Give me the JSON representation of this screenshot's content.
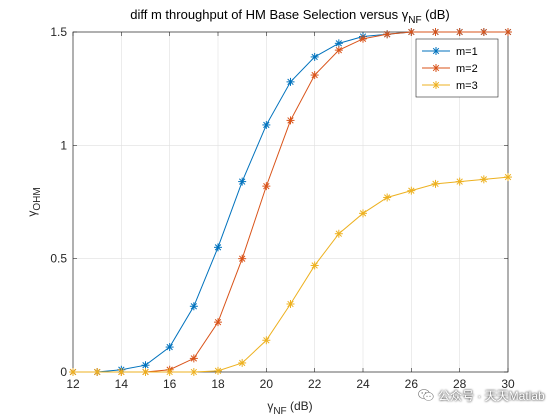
{
  "chart_data": {
    "type": "line",
    "title_prefix": "diff m throughput of HM Base Selection versus ",
    "title_symbol": "γ",
    "title_sub": "NF",
    "title_suffix": " (dB)",
    "xlabel_symbol": "γ",
    "xlabel_sub": "NF",
    "xlabel_suffix": " (dB)",
    "ylabel_symbol": "γ",
    "ylabel_sub": "OHM",
    "xlim": [
      12,
      30
    ],
    "ylim": [
      0,
      1.5
    ],
    "xticks": [
      "12",
      "14",
      "16",
      "18",
      "20",
      "22",
      "24",
      "26",
      "28",
      "30"
    ],
    "yticks": [
      "0",
      "0.5",
      "1",
      "1.5"
    ],
    "grid": true,
    "legend_position": "top-right",
    "x": [
      12,
      13,
      14,
      15,
      16,
      17,
      18,
      19,
      20,
      21,
      22,
      23,
      24,
      25,
      26,
      27,
      28,
      29,
      30
    ],
    "series": [
      {
        "name": "m=1",
        "color": "#0072BD",
        "marker": "asterisk",
        "values": [
          0,
          0,
          0.01,
          0.03,
          0.11,
          0.29,
          0.55,
          0.84,
          1.09,
          1.28,
          1.39,
          1.45,
          1.48,
          1.49,
          1.5,
          1.5,
          1.5,
          1.5,
          1.5
        ]
      },
      {
        "name": "m=2",
        "color": "#D95319",
        "marker": "asterisk",
        "values": [
          0,
          0,
          0,
          0,
          0.01,
          0.06,
          0.22,
          0.5,
          0.82,
          1.11,
          1.31,
          1.42,
          1.47,
          1.49,
          1.5,
          1.5,
          1.5,
          1.5,
          1.5
        ]
      },
      {
        "name": "m=3",
        "color": "#EDB120",
        "marker": "asterisk",
        "values": [
          0,
          0,
          0,
          0,
          0,
          0,
          0.005,
          0.04,
          0.14,
          0.3,
          0.47,
          0.61,
          0.7,
          0.77,
          0.8,
          0.83,
          0.84,
          0.85,
          0.86
        ]
      }
    ]
  },
  "watermark": {
    "text": "公众号 · 天天Matlab",
    "icon": "wechat-icon"
  }
}
